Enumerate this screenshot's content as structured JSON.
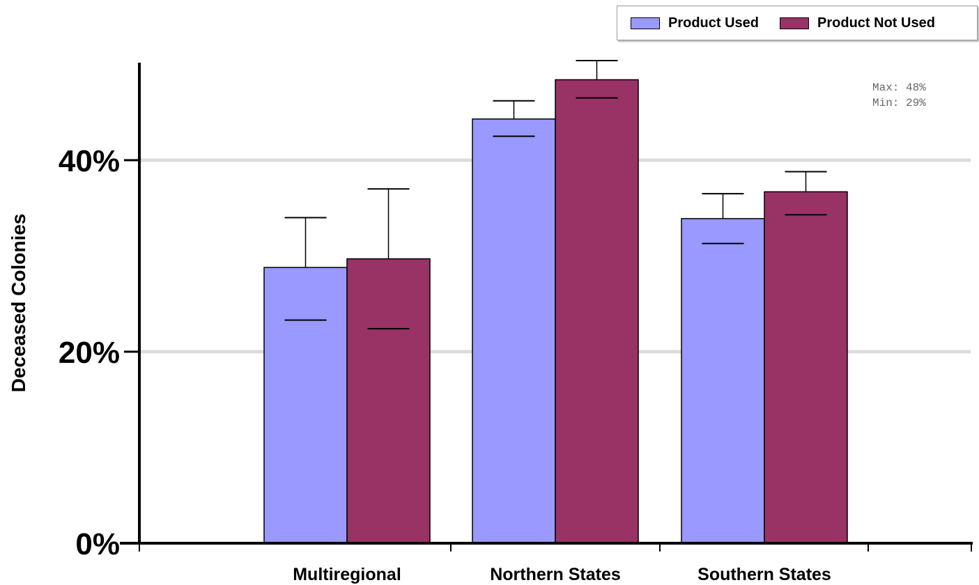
{
  "chart_data": {
    "type": "bar",
    "title": "",
    "xlabel": "",
    "ylabel": "Deceased Colonies",
    "ylim": [
      0,
      50
    ],
    "yticks": [
      0,
      20,
      40
    ],
    "ytick_labels": [
      "0%",
      "20%",
      "40%"
    ],
    "grid": "horizontal at 20% and 40%",
    "legend_placement": "top-right",
    "categories": [
      "Multiregional",
      "Northern States",
      "Southern States"
    ],
    "series": [
      {
        "name": "Product Used",
        "color": "#9999ff",
        "values": [
          28.8,
          44.3,
          33.9
        ],
        "error_high": [
          34.0,
          46.2,
          36.5
        ],
        "error_low": [
          23.3,
          42.5,
          31.3
        ]
      },
      {
        "name": "Product Not Used",
        "color": "#993366",
        "values": [
          29.7,
          48.4,
          36.7
        ],
        "error_high": [
          37.0,
          50.4,
          38.8
        ],
        "error_low": [
          22.4,
          46.5,
          34.3
        ]
      }
    ],
    "annotations": {
      "max_label": "Max: 48%",
      "min_label": "Min: 29%"
    }
  }
}
